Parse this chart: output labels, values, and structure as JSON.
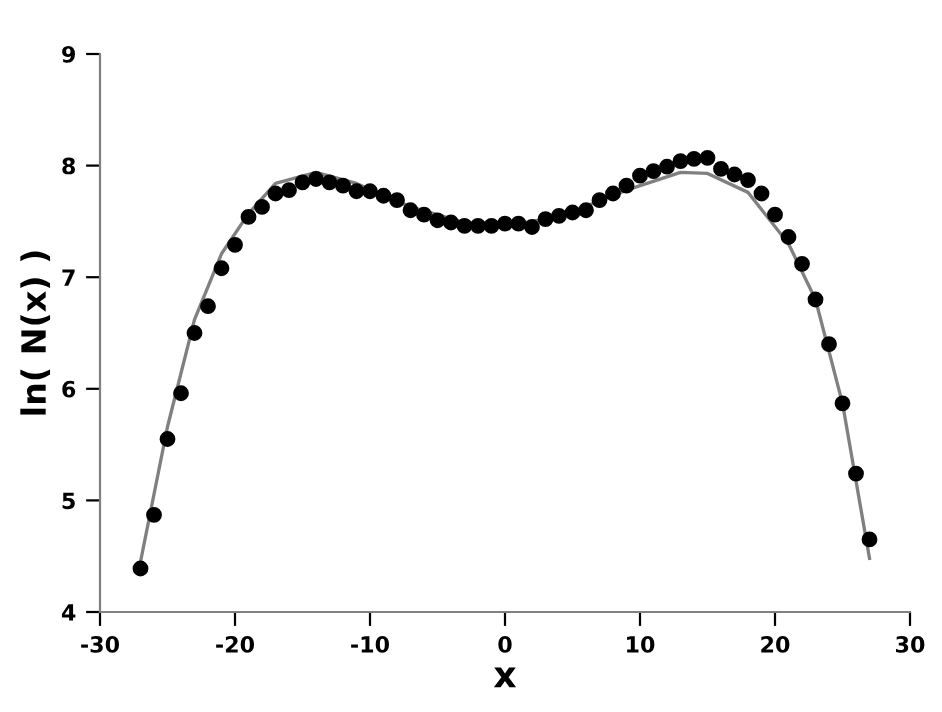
{
  "chart_data": {
    "type": "scatter",
    "xlabel": "x",
    "ylabel": "ln( N(x) )",
    "xlim": [
      -30,
      30
    ],
    "ylim": [
      4,
      9
    ],
    "xticks": [
      -30,
      -20,
      -10,
      0,
      10,
      20,
      30
    ],
    "yticks": [
      4,
      5,
      6,
      7,
      8,
      9
    ],
    "grid": false,
    "legend": false,
    "marker": "circle",
    "series": [
      {
        "color": "#000000",
        "x": [
          -27,
          -26,
          -25,
          -24,
          -23,
          -22,
          -21,
          -20,
          -19,
          -18,
          -17,
          -16,
          -15,
          -14,
          -13,
          -12,
          -11,
          -10,
          -9,
          -8,
          -7,
          -6,
          -5,
          -4,
          -3,
          -2,
          -1,
          0,
          1,
          2,
          3,
          4,
          5,
          6,
          7,
          8,
          9,
          10,
          11,
          12,
          13,
          14,
          15,
          16,
          17,
          18,
          19,
          20,
          21,
          22,
          23,
          24,
          25,
          26,
          27
        ],
        "values": [
          4.39,
          4.87,
          5.55,
          5.96,
          6.5,
          6.74,
          7.08,
          7.29,
          7.54,
          7.63,
          7.75,
          7.78,
          7.85,
          7.88,
          7.85,
          7.82,
          7.77,
          7.77,
          7.73,
          7.69,
          7.6,
          7.56,
          7.51,
          7.49,
          7.46,
          7.46,
          7.46,
          7.48,
          7.48,
          7.45,
          7.52,
          7.55,
          7.58,
          7.6,
          7.69,
          7.75,
          7.82,
          7.91,
          7.95,
          7.99,
          8.04,
          8.06,
          8.07,
          7.97,
          7.92,
          7.87,
          7.75,
          7.56,
          7.36,
          7.12,
          6.8,
          6.4,
          5.87,
          5.24,
          4.65
        ]
      },
      {
        "type": "line",
        "marker": "none",
        "color": "#808080",
        "x": [
          -27,
          -25,
          -23,
          -21,
          -19,
          -17,
          -14,
          -11,
          -7,
          -3,
          1,
          4,
          9,
          13,
          15,
          18,
          21,
          23,
          25,
          27
        ],
        "values": [
          4.45,
          5.66,
          6.62,
          7.21,
          7.57,
          7.84,
          7.94,
          7.84,
          7.63,
          7.49,
          7.48,
          7.54,
          7.78,
          7.94,
          7.93,
          7.76,
          7.3,
          6.8,
          5.87,
          4.48
        ]
      }
    ]
  }
}
